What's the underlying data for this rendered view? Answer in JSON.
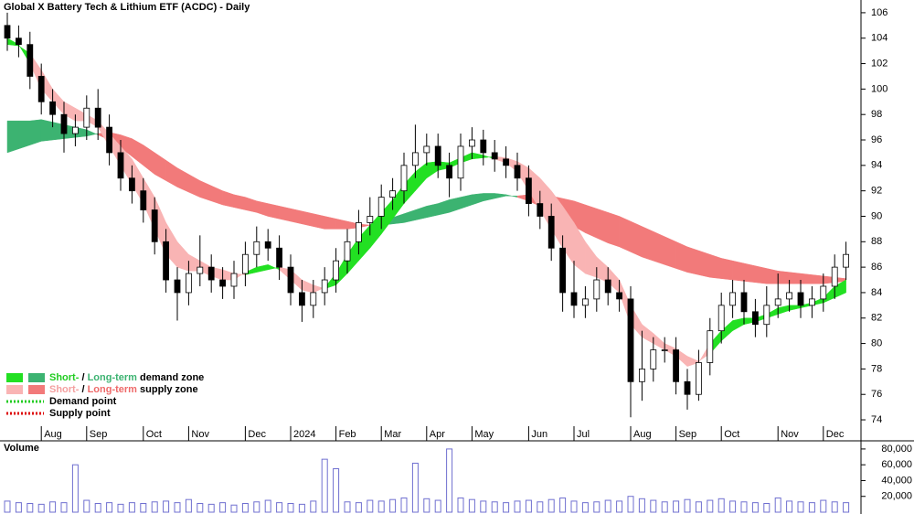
{
  "chart_data": [
    {
      "type": "candlestick",
      "title": "Global X Battery Tech & Lithium ETF (ACDC) - Daily",
      "categories": [
        null,
        null,
        null,
        "Aug",
        null,
        null,
        null,
        "Sep",
        null,
        null,
        null,
        null,
        "Oct",
        null,
        null,
        null,
        "Nov",
        null,
        null,
        null,
        null,
        "Dec",
        null,
        null,
        null,
        "2024",
        null,
        null,
        null,
        "Feb",
        null,
        null,
        null,
        "Mar",
        null,
        null,
        null,
        "Apr",
        null,
        null,
        null,
        "May",
        null,
        null,
        null,
        null,
        "Jun",
        null,
        null,
        null,
        "Jul",
        null,
        null,
        null,
        null,
        "Aug",
        null,
        null,
        null,
        "Sep",
        null,
        null,
        null,
        "Oct",
        null,
        null,
        null,
        null,
        "Nov",
        null,
        null,
        null,
        "Dec",
        null,
        null
      ],
      "open": [
        105,
        104,
        103.5,
        101,
        99,
        98,
        96.5,
        97,
        98.5,
        97,
        95,
        93,
        92,
        90.5,
        88,
        85,
        84,
        85.5,
        86,
        85,
        84.5,
        85.5,
        87,
        88,
        87.5,
        86,
        84,
        83,
        84,
        85,
        86.5,
        88,
        89.5,
        90,
        91.5,
        92,
        94,
        95,
        95.5,
        94,
        93,
        95.5,
        96,
        95,
        94.5,
        94,
        93,
        91,
        90,
        87.5,
        84,
        83,
        83.5,
        85,
        84,
        83.5,
        77,
        78,
        79.5,
        79.5,
        77,
        76,
        78.5,
        81,
        83,
        84,
        82.5,
        81.5,
        83,
        83.5,
        84,
        83,
        83.5,
        84.5,
        86
      ],
      "high": [
        106,
        105,
        104.5,
        102,
        100,
        99,
        98,
        99.5,
        100,
        98,
        96,
        94,
        93,
        91.5,
        89,
        86,
        86.5,
        88.5,
        87,
        86,
        86.5,
        88,
        89.2,
        89,
        88.5,
        87,
        85,
        85,
        86,
        87.5,
        89,
        90.5,
        91.5,
        92.5,
        93,
        95,
        97.2,
        96.5,
        96.5,
        95,
        96.5,
        97,
        96.8,
        96,
        95.5,
        95,
        94,
        92,
        91,
        88.5,
        86.5,
        84.5,
        86,
        86,
        85,
        84.5,
        81,
        80.5,
        80.5,
        80.5,
        78,
        79.5,
        82,
        84,
        85,
        85,
        83.5,
        84.5,
        85.5,
        85,
        85,
        84.5,
        85.5,
        87,
        88
      ],
      "low": [
        103,
        102.5,
        100,
        98,
        97,
        95,
        95.5,
        96,
        96,
        94,
        92,
        91,
        89.5,
        87,
        84,
        81.8,
        83,
        84.5,
        84,
        83.5,
        83.5,
        84.5,
        86,
        86.5,
        85,
        83,
        81.7,
        82,
        83,
        84,
        85.5,
        87,
        88.5,
        89,
        90.5,
        91,
        93,
        94,
        93,
        91.5,
        92,
        94.5,
        94,
        93.5,
        93,
        92,
        90,
        89,
        86.5,
        82.5,
        82,
        82,
        82.5,
        83,
        82.5,
        74.2,
        75.5,
        77,
        78.5,
        76,
        74.8,
        75.5,
        77.5,
        80,
        82,
        81.5,
        80.5,
        80.5,
        82,
        82.5,
        82,
        82,
        82.5,
        83.5,
        85
      ],
      "close": [
        104,
        103.5,
        101,
        99,
        98,
        96.5,
        97,
        98.5,
        97,
        95,
        93,
        92,
        90.5,
        88,
        85,
        84,
        85.5,
        86,
        85,
        84.5,
        85.5,
        87,
        88,
        87.5,
        86,
        84,
        83,
        84,
        85,
        86.5,
        88,
        89.5,
        90,
        91.5,
        92,
        94,
        95,
        95.5,
        94,
        93,
        95.5,
        96,
        95,
        94.5,
        94,
        93,
        91,
        90,
        87.5,
        84,
        83,
        83.5,
        85,
        84,
        83.5,
        77,
        78,
        79.5,
        79.5,
        77,
        76,
        78.5,
        81,
        83,
        84,
        82.5,
        81.5,
        83,
        83.5,
        84,
        83,
        83.5,
        84.5,
        86,
        87
      ],
      "bands": [
        {
          "fast": [
            97.5,
            97.5,
            97.5,
            97.6,
            97.4,
            97.2,
            97,
            96.8,
            96.4,
            96,
            95.4,
            94.7,
            94,
            93.3,
            92.8,
            92.3,
            91.9,
            91.5,
            91.2,
            90.9,
            90.7,
            90.5,
            90.3,
            90,
            89.8,
            89.6,
            89.4,
            89.2,
            89,
            89,
            89,
            89.1,
            89.3,
            89.6,
            89.9,
            90.2,
            90.5,
            90.8,
            91,
            91.3,
            91.5,
            91.7,
            91.8,
            91.8,
            91.7,
            91.5,
            91.2,
            90.8,
            90.3,
            89.7,
            89.2,
            88.7,
            88.3,
            87.9,
            87.6,
            87.2,
            86.8,
            86.5,
            86.2,
            85.9,
            85.6,
            85.4,
            85.2,
            85.1,
            85,
            84.9,
            84.8,
            84.7,
            84.7,
            84.7,
            84.7,
            84.7,
            84.7,
            84.8,
            84.9
          ],
          "slow": [
            95,
            95.3,
            95.6,
            95.9,
            96,
            96.1,
            96.2,
            96.3,
            96.5,
            96.6,
            96.4,
            96.1,
            95.6,
            95,
            94.4,
            93.8,
            93.3,
            92.8,
            92.4,
            92,
            91.7,
            91.5,
            91.2,
            91,
            90.8,
            90.6,
            90.4,
            90.2,
            90,
            89.8,
            89.6,
            89.4,
            89.3,
            89.3,
            89.4,
            89.5,
            89.7,
            89.9,
            90.1,
            90.3,
            90.6,
            90.9,
            91.2,
            91.4,
            91.6,
            91.6,
            91.7,
            91.7,
            91.6,
            91.4,
            91.2,
            90.9,
            90.6,
            90.3,
            90,
            89.6,
            89.2,
            88.8,
            88.4,
            88,
            87.6,
            87.3,
            87,
            86.7,
            86.5,
            86.3,
            86.1,
            85.9,
            85.7,
            85.6,
            85.5,
            85.4,
            85.3,
            85.2,
            85.1
          ],
          "demand_color": "#3cb371",
          "supply_color": "#f27a7a"
        },
        {
          "fast": [
            104,
            103.5,
            102,
            100,
            99,
            98,
            97.5,
            97.5,
            97,
            95.5,
            94,
            92.5,
            91,
            89,
            87,
            86,
            85.7,
            85.7,
            85.3,
            85,
            85,
            85.6,
            86,
            86.2,
            85.8,
            85,
            84.2,
            84,
            84.4,
            85.5,
            87,
            88.3,
            89.3,
            90.3,
            91.3,
            92.5,
            93.5,
            94.2,
            94.3,
            94.2,
            94.6,
            95,
            94.8,
            94.5,
            94.2,
            93.5,
            92,
            90.5,
            89,
            87.5,
            86.2,
            85.5,
            85.2,
            84.8,
            84,
            81.5,
            80.5,
            80,
            79.5,
            79,
            78.2,
            78.5,
            80,
            81,
            81.8,
            82,
            82,
            82.3,
            82.8,
            83,
            83,
            83.2,
            83.6,
            84.5,
            85
          ],
          "slow": [
            103.5,
            103.4,
            102.8,
            101.5,
            100,
            99,
            98.5,
            98,
            97.5,
            96.5,
            95.5,
            94.5,
            93,
            91.5,
            89.5,
            88,
            87,
            86.5,
            86,
            85.8,
            85.5,
            85.4,
            85.6,
            85.8,
            86,
            85.8,
            85,
            84.6,
            84.3,
            84.6,
            85.5,
            86.5,
            87.5,
            88.6,
            89.8,
            91,
            92,
            93,
            93.6,
            93.8,
            94.2,
            94.5,
            94.6,
            94.7,
            94.6,
            94.3,
            93.8,
            93,
            92,
            90.8,
            89.5,
            88,
            86.8,
            86,
            85,
            83,
            81.5,
            80.8,
            80,
            79.6,
            79,
            78.6,
            79.2,
            80.2,
            81,
            81.5,
            81.7,
            82,
            82.3,
            82.6,
            82.8,
            83,
            83.2,
            83.6,
            84
          ],
          "demand_color": "#22e022",
          "supply_color": "#f9b4b4"
        }
      ],
      "up_color": "#ffffff",
      "down_color": "#000000",
      "ylim": [
        73.5,
        107
      ],
      "yticks": [
        74,
        76,
        78,
        80,
        82,
        84,
        86,
        88,
        90,
        92,
        94,
        96,
        98,
        100,
        102,
        104,
        106
      ],
      "legend": [
        {
          "parts": [
            {
              "text": "Short-",
              "color": "#22cc22"
            },
            {
              "text": " / ",
              "color": "#000000"
            },
            {
              "text": "Long-term",
              "color": "#3cb371"
            },
            {
              "text": " demand zone",
              "color": "#000000"
            }
          ],
          "colors": [
            "#22e022",
            "#3cb371"
          ]
        },
        {
          "parts": [
            {
              "text": "Short-",
              "color": "#f4a0a0"
            },
            {
              "text": " / ",
              "color": "#000000"
            },
            {
              "text": "Long-term",
              "color": "#ee6a6a"
            },
            {
              "text": " supply zone",
              "color": "#000000"
            }
          ],
          "colors": [
            "#f9b4b4",
            "#f27a7a"
          ]
        },
        {
          "parts": [
            {
              "text": "Demand point",
              "color": "#000000"
            }
          ],
          "dotted": "#22cc22"
        },
        {
          "parts": [
            {
              "text": "Supply point",
              "color": "#000000"
            }
          ],
          "dotted": "#dd0000"
        }
      ]
    },
    {
      "type": "bar",
      "title": "Volume",
      "values": [
        14000,
        12000,
        11000,
        10000,
        13000,
        12000,
        60000,
        15000,
        11000,
        12000,
        10000,
        12000,
        11000,
        13000,
        14000,
        12000,
        16000,
        11000,
        10000,
        12000,
        9000,
        11000,
        13000,
        15000,
        12000,
        11000,
        10000,
        14000,
        67000,
        55000,
        13000,
        12000,
        15000,
        14000,
        16000,
        18000,
        62000,
        17000,
        15000,
        80000,
        18000,
        16000,
        14000,
        13000,
        12000,
        14000,
        15000,
        13000,
        16000,
        18000,
        14000,
        12000,
        13000,
        15000,
        14000,
        20000,
        17000,
        15000,
        13000,
        14000,
        16000,
        13000,
        15000,
        17000,
        14000,
        13000,
        12000,
        11000,
        18000,
        14000,
        13000,
        12000,
        15000,
        13000,
        12000
      ],
      "color": "#6f6fd0",
      "ylim": [
        0,
        88000
      ],
      "yticks": [
        {
          "value": 20000,
          "label": "20,000"
        },
        {
          "value": 40000,
          "label": "40,000"
        },
        {
          "value": 60000,
          "label": "60,000"
        },
        {
          "value": 80000,
          "label": "80,000"
        }
      ]
    }
  ]
}
